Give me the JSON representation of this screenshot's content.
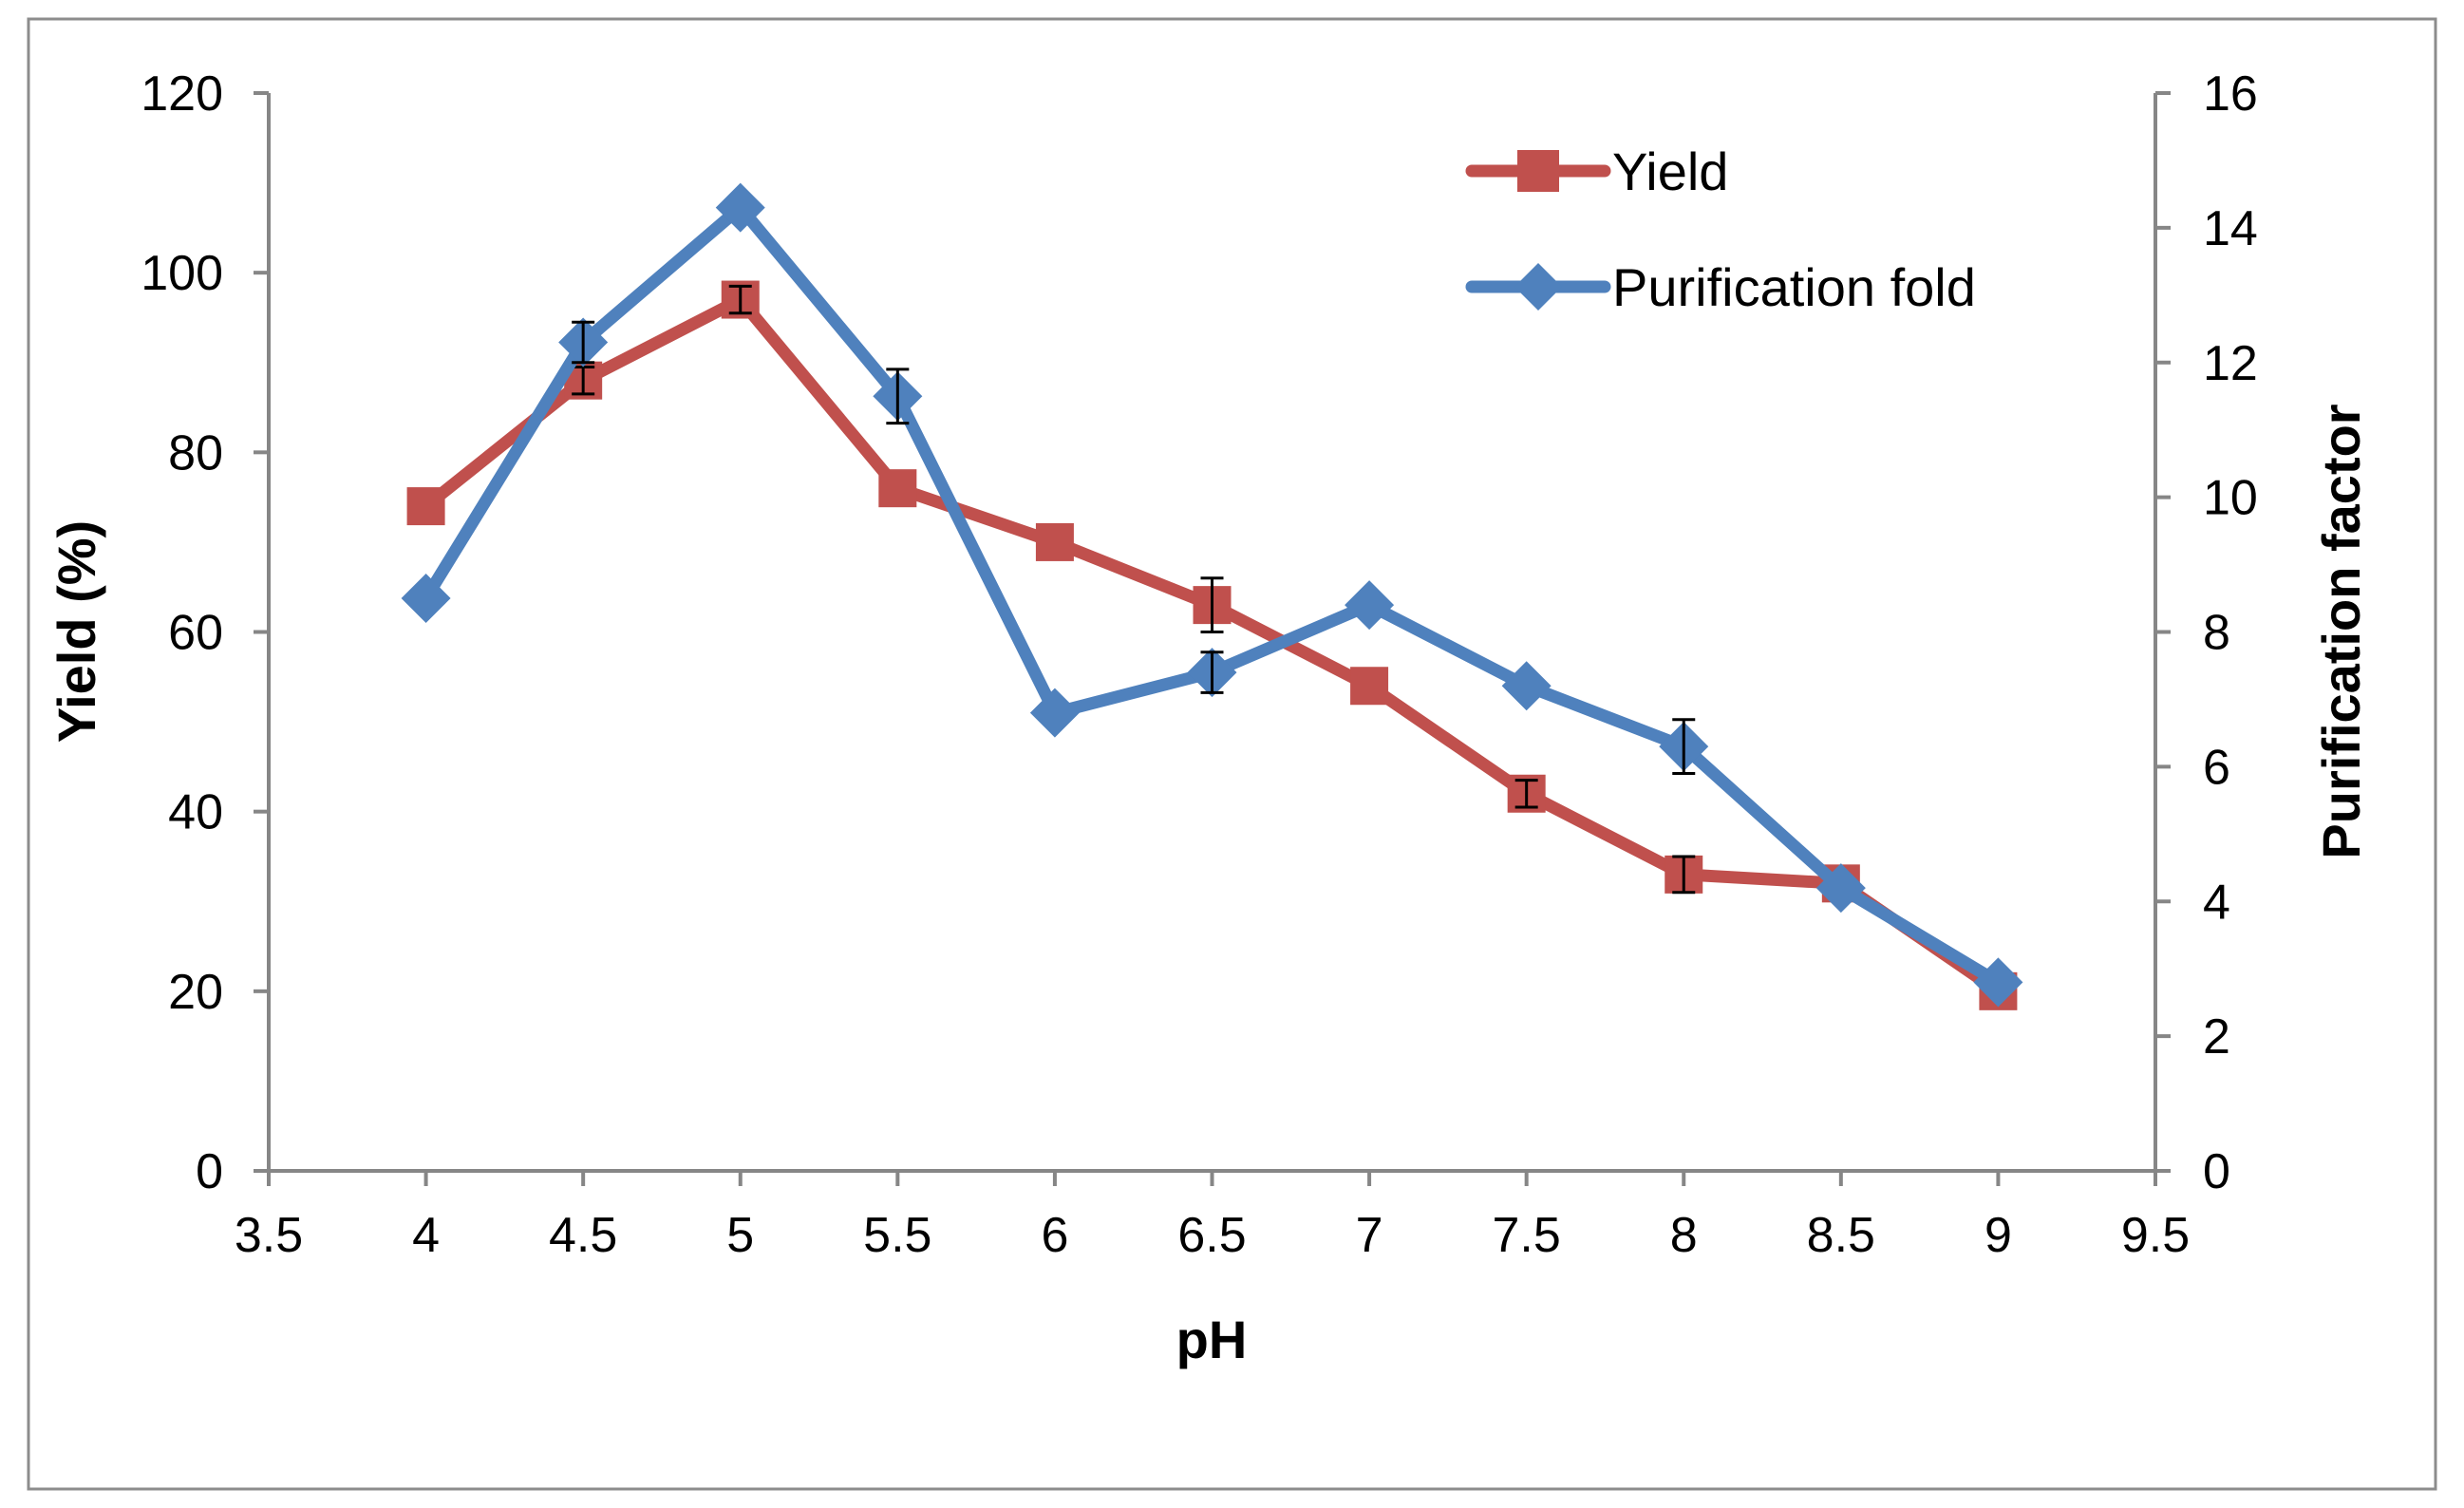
{
  "chart_data": {
    "type": "line",
    "title": "",
    "xlabel": "pH",
    "ylabel": "Yield (%)",
    "y2label": "Purification factor",
    "xlim": [
      3.5,
      9.5
    ],
    "ylim": [
      0,
      120
    ],
    "y2lim": [
      0,
      16
    ],
    "xticks": [
      "3.5",
      "4",
      "4.5",
      "5",
      "5.5",
      "6",
      "6.5",
      "7",
      "7.5",
      "8",
      "8.5",
      "9",
      "9.5"
    ],
    "xtick_values": [
      3.5,
      4,
      4.5,
      5,
      5.5,
      6,
      6.5,
      7,
      7.5,
      8,
      8.5,
      9,
      9.5
    ],
    "yticks": [
      "0",
      "20",
      "40",
      "60",
      "80",
      "100",
      "120"
    ],
    "ytick_values": [
      0,
      20,
      40,
      60,
      80,
      100,
      120
    ],
    "y2ticks": [
      "0",
      "2",
      "4",
      "6",
      "8",
      "10",
      "12",
      "14",
      "16"
    ],
    "y2tick_values": [
      0,
      2,
      4,
      6,
      8,
      10,
      12,
      14,
      16
    ],
    "grid": false,
    "legend_position": "top-right",
    "x": [
      4,
      4.5,
      5,
      5.5,
      6,
      6.5,
      7,
      7.5,
      8,
      8.5,
      9
    ],
    "series": [
      {
        "name": "Yield",
        "axis": "left",
        "color": "#C0504D",
        "marker": "square",
        "values": [
          74,
          88,
          97,
          76,
          70,
          63,
          54,
          42,
          33,
          32,
          20
        ],
        "errors": [
          0,
          1.5,
          1.5,
          0,
          0,
          3,
          0,
          1.5,
          2,
          0,
          0
        ]
      },
      {
        "name": "Purification fold",
        "axis": "right",
        "color": "#4F81BD",
        "marker": "diamond",
        "values": [
          8.5,
          12.3,
          14.3,
          11.5,
          6.8,
          7.4,
          8.4,
          7.2,
          6.3,
          4.2,
          2.8
        ],
        "errors": [
          0,
          0.3,
          0,
          0.4,
          0,
          0.3,
          0,
          0,
          0.4,
          0,
          0
        ]
      }
    ]
  }
}
